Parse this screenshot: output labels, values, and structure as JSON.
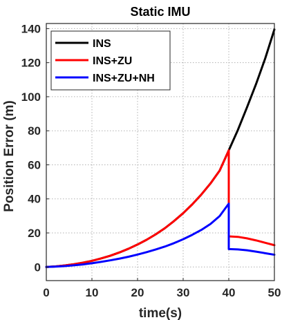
{
  "chart_data": {
    "type": "line",
    "title": "Static IMU",
    "xlabel": "time(s)",
    "ylabel": "Position Error (m)",
    "xlim": [
      0,
      50
    ],
    "ylim": [
      -8,
      143
    ],
    "xticks": [
      0,
      10,
      20,
      30,
      40,
      50
    ],
    "yticks": [
      0,
      20,
      40,
      60,
      80,
      100,
      120,
      140
    ],
    "grid": true,
    "legend_position": "top-left",
    "series": [
      {
        "name": "INS",
        "color": "#000000",
        "x": [
          0,
          2,
          4,
          6,
          8,
          10,
          12,
          14,
          16,
          18,
          20,
          22,
          24,
          26,
          28,
          30,
          32,
          34,
          36,
          38,
          40,
          42,
          44,
          46,
          48,
          50
        ],
        "y": [
          0,
          0.3,
          0.9,
          1.6,
          2.5,
          3.6,
          5.0,
          6.6,
          8.5,
          10.7,
          13.2,
          16.0,
          19.2,
          22.8,
          27.0,
          31.6,
          36.8,
          42.6,
          49.1,
          56.6,
          68.5,
          80.5,
          93.8,
          107.6,
          122.6,
          139.5
        ]
      },
      {
        "name": "INS+ZU",
        "color": "#ff0000",
        "x": [
          0,
          2,
          4,
          6,
          8,
          10,
          12,
          14,
          16,
          18,
          20,
          22,
          24,
          26,
          28,
          30,
          32,
          34,
          36,
          38,
          40,
          40,
          42,
          44,
          46,
          48,
          50
        ],
        "y": [
          0,
          0.3,
          0.9,
          1.6,
          2.5,
          3.6,
          5.0,
          6.6,
          8.5,
          10.7,
          13.2,
          16.0,
          19.2,
          22.8,
          27.0,
          31.6,
          36.8,
          42.6,
          49.1,
          56.6,
          68.5,
          18.0,
          17.7,
          16.8,
          15.6,
          14.2,
          12.8
        ]
      },
      {
        "name": "INS+ZU+NH",
        "color": "#0000ff",
        "x": [
          0,
          2,
          4,
          6,
          8,
          10,
          12,
          14,
          16,
          18,
          20,
          22,
          24,
          26,
          28,
          30,
          32,
          34,
          36,
          38,
          40,
          40,
          42,
          44,
          46,
          48,
          50
        ],
        "y": [
          0,
          0.2,
          0.5,
          1.0,
          1.5,
          2.2,
          3.0,
          3.9,
          4.9,
          6.0,
          7.3,
          8.7,
          10.3,
          12.0,
          14.0,
          16.3,
          18.9,
          21.8,
          25.3,
          29.9,
          37.2,
          10.5,
          10.3,
          9.8,
          9.0,
          8.1,
          7.2
        ]
      }
    ]
  }
}
